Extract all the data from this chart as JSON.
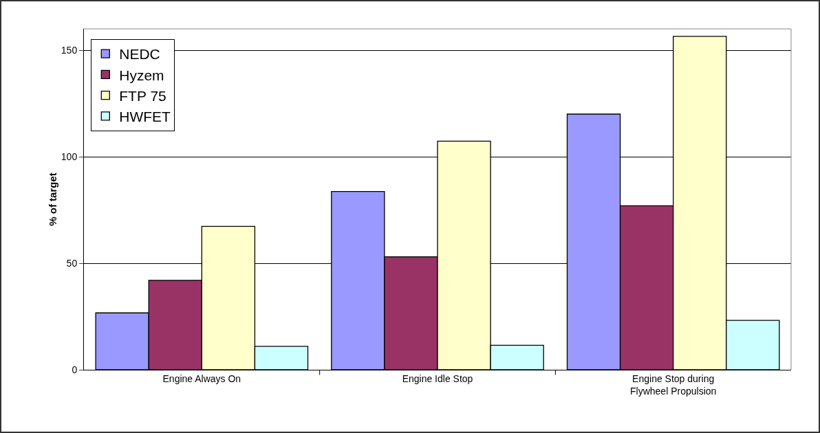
{
  "chart_data": {
    "type": "bar",
    "ylabel": "% of target",
    "categories": [
      "Engine Always On",
      "Engine Idle Stop",
      "Engine Stop during Flywheel Propulsion"
    ],
    "series": [
      {
        "name": "NEDC",
        "color": "#9999ff",
        "values": [
          26.7,
          83.7,
          120
        ]
      },
      {
        "name": "Hyzem",
        "color": "#993366",
        "values": [
          42,
          53,
          77
        ]
      },
      {
        "name": "FTP 75",
        "color": "#ffffcc",
        "values": [
          67.3,
          107.3,
          156.5
        ]
      },
      {
        "name": "HWFET",
        "color": "#ccffff",
        "values": [
          11,
          11.5,
          23.2
        ]
      }
    ],
    "ylim": [
      0,
      160
    ],
    "yticks": [
      0,
      50,
      100,
      150
    ],
    "grid": "y",
    "legend": "top left"
  }
}
